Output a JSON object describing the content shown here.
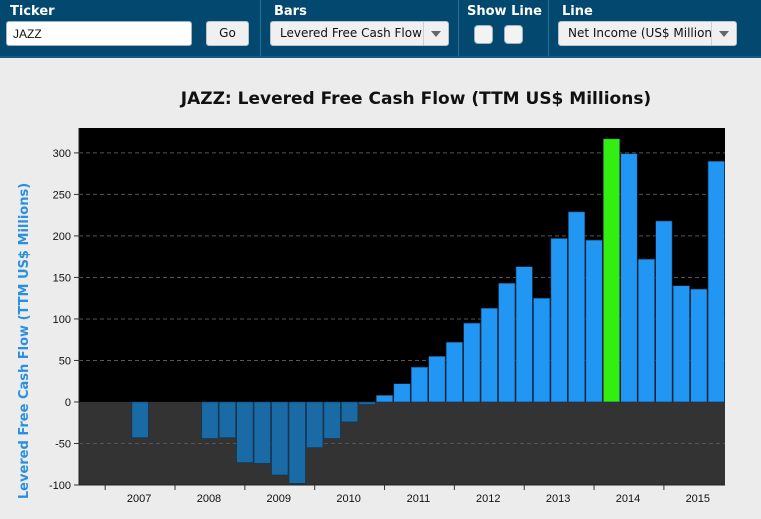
{
  "toolbar": {
    "ticker_label": "Ticker",
    "ticker_value": "JAZZ",
    "go_label": "Go",
    "bars_label": "Bars",
    "bars_selected": "Levered Free Cash Flow (TTM US$ Millions)",
    "show_line_label": "Show Line",
    "line_label": "Line",
    "line_selected": "Net Income (US$ Millions)"
  },
  "colors": {
    "toolbar_bg": "#03486f",
    "plot_bg_positive": "#000000",
    "plot_bg_negative": "#333333",
    "bar_positive": "#2196f3",
    "bar_negative": "#1a6aa6",
    "bar_highlight": "#33ee11",
    "ylabel": "#2a8fe0"
  },
  "chart_data": {
    "type": "bar",
    "title": "JAZZ: Levered Free Cash Flow (TTM US$ Millions)",
    "ylabel": "Levered Free Cash Flow (TTM US$ Millions)",
    "xlabel": "",
    "ylim": [
      -100,
      330
    ],
    "yticks": [
      -100,
      -50,
      0,
      50,
      100,
      150,
      200,
      250,
      300
    ],
    "xticks": [
      "2007",
      "2008",
      "2009",
      "2010",
      "2011",
      "2012",
      "2013",
      "2014",
      "2015"
    ],
    "grid": "horizontal dashed",
    "highlight_index": 30,
    "x": [
      "2006 Q2",
      "2006 Q3",
      "2006 Q4",
      "2007 Q1",
      "2007 Q2",
      "2007 Q3",
      "2007 Q4",
      "2008 Q1",
      "2008 Q2",
      "2008 Q3",
      "2008 Q4",
      "2009 Q1",
      "2009 Q2",
      "2009 Q3",
      "2009 Q4",
      "2010 Q1",
      "2010 Q2",
      "2010 Q3",
      "2010 Q4",
      "2011 Q1",
      "2011 Q2",
      "2011 Q3",
      "2011 Q4",
      "2012 Q1",
      "2012 Q2",
      "2012 Q3",
      "2012 Q4",
      "2013 Q1",
      "2013 Q2",
      "2013 Q3",
      "2013 Q4",
      "2014 Q1",
      "2014 Q2",
      "2014 Q3",
      "2014 Q4",
      "2015 Q1",
      "2015 Q2"
    ],
    "values": [
      0,
      0,
      0,
      -43,
      0,
      0,
      0,
      -44,
      -43,
      -73,
      -74,
      -88,
      -98,
      -55,
      -44,
      -24,
      -3,
      8,
      22,
      42,
      55,
      72,
      95,
      113,
      143,
      163,
      125,
      197,
      229,
      195,
      317,
      299,
      172,
      218,
      140,
      136,
      290
    ]
  }
}
